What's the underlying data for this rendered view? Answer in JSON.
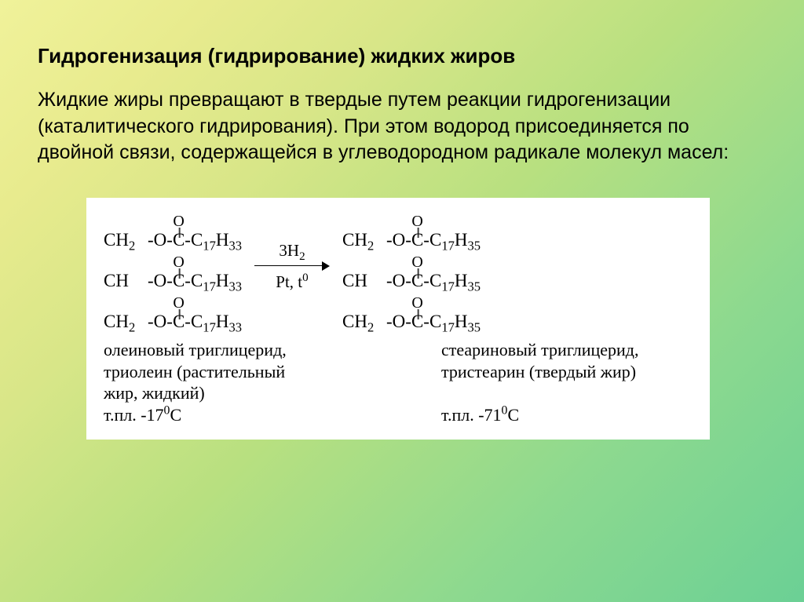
{
  "title": "Гидрогенизация (гидрирование) жидких жиров",
  "body": "Жидкие жиры превращают в твердые путем реакции гидрогенизации (каталитического гидрирования). При этом водород присоединяется по двойной связи, содержащейся в углеводородном радикале молекул масел:",
  "reaction": {
    "left_tail_sub": "17",
    "left_tail_sub2": "33",
    "right_tail_sub": "17",
    "right_tail_sub2": "35",
    "arrow_top_coeff": "3",
    "arrow_top_mol": "H",
    "arrow_top_sub": "2",
    "arrow_bot_cat": "Pt, t",
    "arrow_bot_sup": "0",
    "caption_left_l1": "олеиновый триглицерид,",
    "caption_left_l2": "триолеин (растительный",
    "caption_left_l3": "жир, жидкий)",
    "caption_left_l4_a": "т.пл. -17",
    "caption_left_l4_sup": "0",
    "caption_left_l4_b": "С",
    "caption_right_l1": "стеариновый триглицерид,",
    "caption_right_l2": "тристеарин (твердый жир)",
    "caption_right_l4_a": "т.пл. -71",
    "caption_right_l4_sup": "0",
    "caption_right_l4_b": "С"
  },
  "labels": {
    "ch2": "CH",
    "ch": "CH",
    "o_link": "-O-",
    "c": "C",
    "o_dbl": "O",
    "dash": "-",
    "c_tail": "C",
    "h_tail": "H",
    "two": "2"
  }
}
